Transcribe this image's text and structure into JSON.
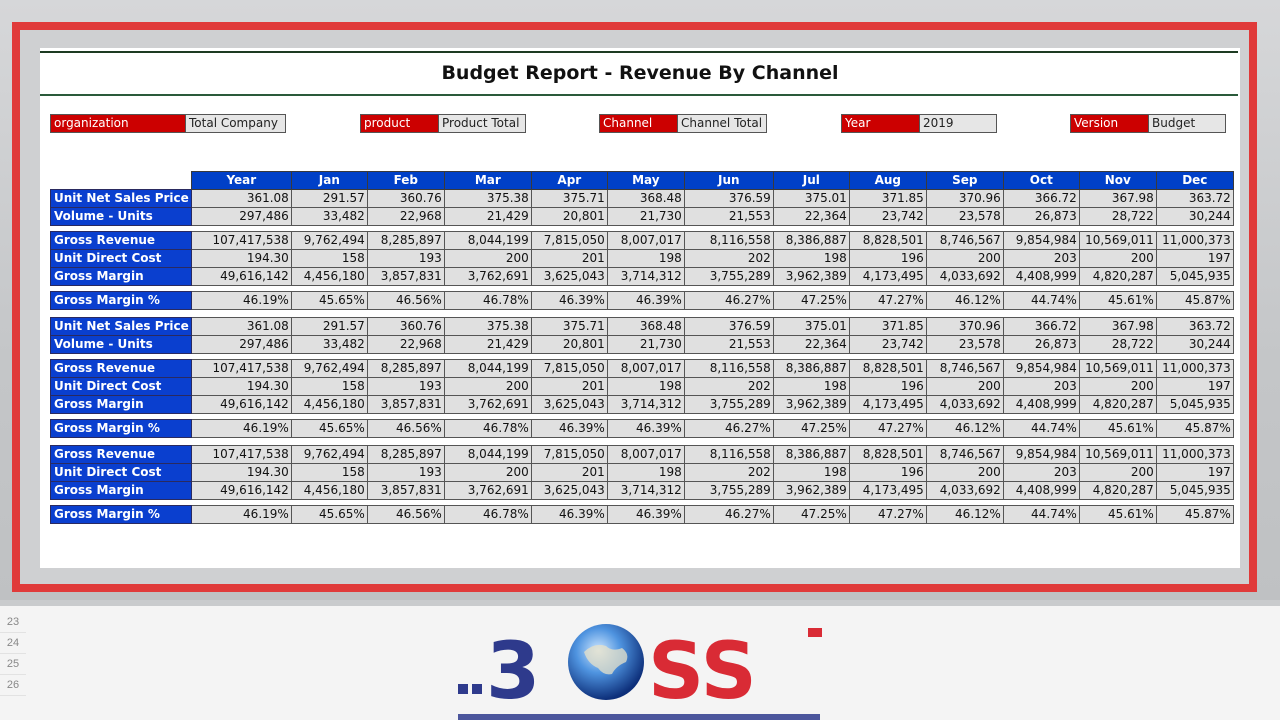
{
  "report": {
    "title": "Budget Report - Revenue By Channel"
  },
  "filters": [
    {
      "label": "organization",
      "value": "Total Company"
    },
    {
      "label": "product",
      "value": "Product Total"
    },
    {
      "label": "Channel",
      "value": "Channel Total"
    },
    {
      "label": "Year",
      "value": "2019"
    },
    {
      "label": "Version",
      "value": "Budget"
    }
  ],
  "columns": [
    "Year",
    "Jan",
    "Feb",
    "Mar",
    "Apr",
    "May",
    "Jun",
    "Jul",
    "Aug",
    "Sep",
    "Oct",
    "Nov",
    "Dec"
  ],
  "rows": {
    "unit_net_sales_price": {
      "label": "Unit Net Sales Price",
      "values": [
        "361.08",
        "291.57",
        "360.76",
        "375.38",
        "375.71",
        "368.48",
        "376.59",
        "375.01",
        "371.85",
        "370.96",
        "366.72",
        "367.98",
        "363.72"
      ]
    },
    "volume_units": {
      "label": "Volume - Units",
      "values": [
        "297,486",
        "33,482",
        "22,968",
        "21,429",
        "20,801",
        "21,730",
        "21,553",
        "22,364",
        "23,742",
        "23,578",
        "26,873",
        "28,722",
        "30,244"
      ]
    },
    "gross_revenue": {
      "label": "Gross Revenue",
      "values": [
        "107,417,538",
        "9,762,494",
        "8,285,897",
        "8,044,199",
        "7,815,050",
        "8,007,017",
        "8,116,558",
        "8,386,887",
        "8,828,501",
        "8,746,567",
        "9,854,984",
        "10,569,011",
        "11,000,373"
      ]
    },
    "unit_direct_cost": {
      "label": "Unit Direct Cost",
      "values": [
        "194.30",
        "158",
        "193",
        "200",
        "201",
        "198",
        "202",
        "198",
        "196",
        "200",
        "203",
        "200",
        "197"
      ]
    },
    "gross_margin": {
      "label": "Gross Margin",
      "values": [
        "49,616,142",
        "4,456,180",
        "3,857,831",
        "3,762,691",
        "3,625,043",
        "3,714,312",
        "3,755,289",
        "3,962,389",
        "4,173,495",
        "4,033,692",
        "4,408,999",
        "4,820,287",
        "5,045,935"
      ]
    },
    "gross_margin_pct": {
      "label": "Gross Margin %",
      "values": [
        "46.19%",
        "45.65%",
        "46.56%",
        "46.78%",
        "46.39%",
        "46.39%",
        "46.27%",
        "47.25%",
        "47.27%",
        "46.12%",
        "44.74%",
        "45.61%",
        "45.87%"
      ]
    }
  },
  "layout_blocks": [
    [
      "unit_net_sales_price",
      "volume_units",
      "gap",
      "gross_revenue",
      "unit_direct_cost",
      "gross_margin",
      "gap",
      "gross_margin_pct",
      "gap"
    ],
    [
      "unit_net_sales_price",
      "volume_units",
      "gap",
      "gross_revenue",
      "unit_direct_cost",
      "gross_margin",
      "gap",
      "gross_margin_pct",
      "gap"
    ],
    [
      "gross_revenue",
      "unit_direct_cost",
      "gross_margin",
      "gap",
      "gross_margin_pct"
    ]
  ],
  "excel_rows": [
    "23",
    "24",
    "25",
    "26"
  ],
  "colors": {
    "accent_red": "#cc0000",
    "header_blue": "#0040c8",
    "frame_red": "#e03a3a",
    "logo_navy": "#2e3a8c",
    "logo_red": "#d92b35"
  },
  "logo": {
    "text_left": "3",
    "text_right": "SS"
  }
}
